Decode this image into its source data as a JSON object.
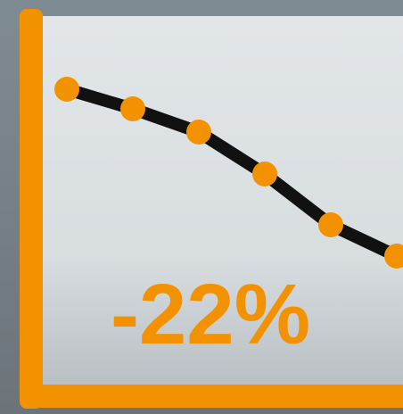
{
  "chart_data": {
    "type": "line",
    "annotation": "-22%",
    "categories": [
      null,
      null,
      null,
      null,
      null,
      null
    ],
    "series": [
      {
        "color": "#f39200",
        "values": [
          337,
          315,
          289,
          242,
          185,
          150
        ]
      }
    ],
    "line_color": "#111111",
    "axis_color": "#f39200",
    "ylim": [
      0,
      420
    ]
  }
}
